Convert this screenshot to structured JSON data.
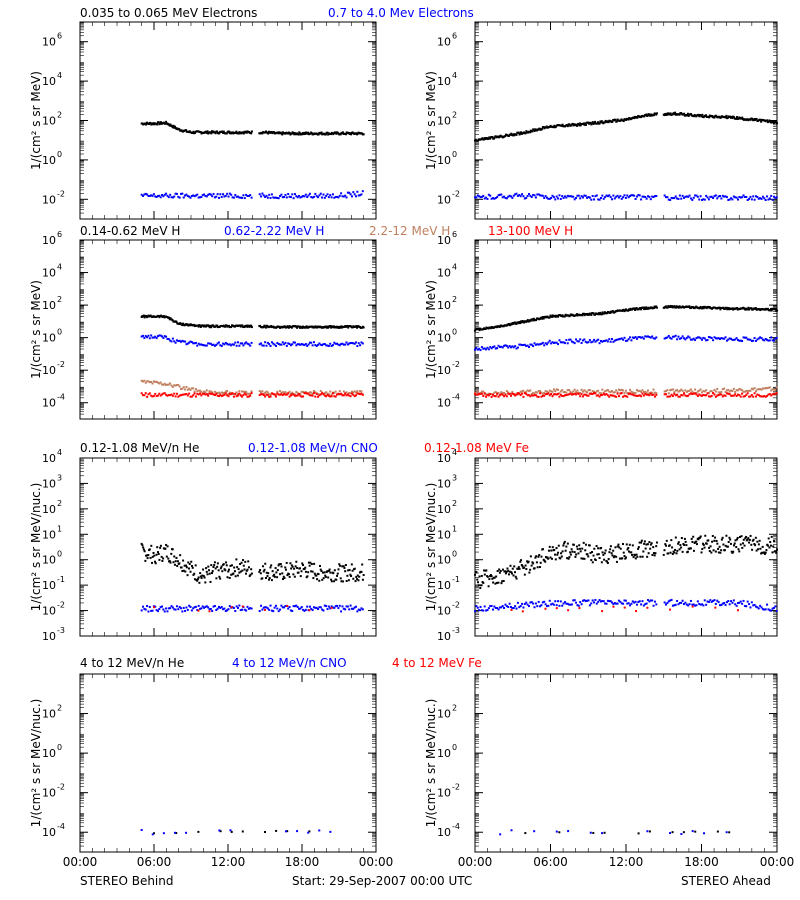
{
  "footer": {
    "left": "STEREO Behind",
    "center": "Start: 29-Sep-2007 00:00 UTC",
    "right": "STEREO Ahead"
  },
  "x_ticks": [
    "00:00",
    "06:00",
    "12:00",
    "18:00",
    "00:00"
  ],
  "colors": {
    "black": "#000000",
    "blue": "#0000ff",
    "tan": "#c08060",
    "red": "#ff0000"
  },
  "rows": [
    {
      "ylabel": "1/(cm² s sr MeV)",
      "legend": [
        {
          "text": "0.035 to 0.065 MeV Electrons",
          "color": "black"
        },
        {
          "text": "0.7 to 4.0 Mev Electrons",
          "color": "blue"
        }
      ]
    },
    {
      "ylabel": "1/(cm² s sr MeV)",
      "legend": [
        {
          "text": "0.14-0.62 MeV H",
          "color": "black"
        },
        {
          "text": "0.62-2.22 MeV H",
          "color": "blue"
        },
        {
          "text": "2.2-12 MeV H",
          "color": "tan"
        },
        {
          "text": "13-100 MeV H",
          "color": "red"
        }
      ]
    },
    {
      "ylabel": "1/(cm² s sr MeV/nuc.)",
      "legend": [
        {
          "text": "0.12-1.08 MeV/n He",
          "color": "black"
        },
        {
          "text": "0.12-1.08 MeV/n CNO",
          "color": "blue"
        },
        {
          "text": "0.12-1.08 MeV Fe",
          "color": "red"
        }
      ]
    },
    {
      "ylabel": "1/(cm² s sr MeV/nuc.)",
      "legend": [
        {
          "text": "4 to 12 MeV/n He",
          "color": "black"
        },
        {
          "text": "4 to 12 MeV/n CNO",
          "color": "blue"
        },
        {
          "text": "4 to 12 MeV Fe",
          "color": "red"
        }
      ]
    }
  ],
  "chart_data": [
    {
      "type": "scatter",
      "panel": "electrons-behind",
      "scale": "log",
      "ylim_exp": [
        -3,
        7
      ],
      "y_ticks_exp": [
        -2,
        0,
        2,
        4,
        6
      ],
      "xlim": [
        0,
        24
      ],
      "series": [
        {
          "name": "0.035 to 0.065 MeV Electrons",
          "color": "black",
          "x": [
            5,
            6,
            7,
            8,
            9,
            10,
            11,
            12,
            13,
            14,
            15,
            16,
            17,
            18,
            19,
            20,
            21,
            22,
            23
          ],
          "y": [
            70,
            70,
            75,
            35,
            25,
            25,
            25,
            25,
            25,
            25,
            25,
            22,
            22,
            22,
            22,
            22,
            22,
            22,
            22
          ],
          "gap": [
            14,
            14.5
          ]
        },
        {
          "name": "0.7 to 4.0 Mev Electrons",
          "color": "blue",
          "x": [
            5,
            7,
            9,
            11,
            13,
            15,
            17,
            19,
            21,
            23
          ],
          "y": [
            0.015,
            0.015,
            0.015,
            0.015,
            0.015,
            0.015,
            0.015,
            0.015,
            0.015,
            0.02
          ],
          "gap": [
            14,
            14.5
          ]
        }
      ]
    },
    {
      "type": "scatter",
      "panel": "electrons-ahead",
      "scale": "log",
      "ylim_exp": [
        -3,
        7
      ],
      "y_ticks_exp": [
        -2,
        0,
        2,
        4,
        6
      ],
      "xlim": [
        0,
        24
      ],
      "series": [
        {
          "name": "0.035 to 0.065 MeV Electrons",
          "color": "black",
          "x": [
            0,
            2,
            4,
            6,
            8,
            10,
            12,
            14,
            16,
            18,
            20,
            22,
            24
          ],
          "y": [
            10,
            15,
            25,
            50,
            60,
            80,
            110,
            200,
            220,
            170,
            150,
            110,
            80
          ],
          "gap": [
            14.5,
            15
          ]
        },
        {
          "name": "0.7 to 4.0 Mev Electrons",
          "color": "blue",
          "x": [
            0,
            3,
            6,
            9,
            12,
            15,
            18,
            21,
            24
          ],
          "y": [
            0.012,
            0.015,
            0.013,
            0.012,
            0.013,
            0.012,
            0.012,
            0.012,
            0.012
          ],
          "gap": [
            14.5,
            15
          ]
        }
      ]
    },
    {
      "type": "scatter",
      "panel": "protons-behind",
      "scale": "log",
      "ylim_exp": [
        -5,
        6
      ],
      "y_ticks_exp": [
        -4,
        -2,
        0,
        2,
        4,
        6
      ],
      "xlim": [
        0,
        24
      ],
      "series": [
        {
          "name": "0.14-0.62 MeV H",
          "color": "black",
          "x": [
            5,
            7,
            8,
            10,
            12,
            14,
            16,
            18,
            20,
            23
          ],
          "y": [
            20,
            20,
            7,
            5,
            5,
            5,
            4.5,
            4.5,
            4.5,
            4.5
          ],
          "gap": [
            14,
            14.5
          ]
        },
        {
          "name": "0.62-2.22 MeV H",
          "color": "blue",
          "x": [
            5,
            7,
            8,
            10,
            12,
            14,
            16,
            18,
            20,
            23
          ],
          "y": [
            1.2,
            1.0,
            0.5,
            0.4,
            0.4,
            0.4,
            0.4,
            0.4,
            0.4,
            0.4
          ],
          "gap": [
            14,
            14.5
          ]
        },
        {
          "name": "2.2-12 MeV H",
          "color": "tan",
          "x": [
            5,
            7,
            9,
            11,
            13,
            15,
            17,
            19,
            21,
            23
          ],
          "y": [
            0.002,
            0.0015,
            0.0006,
            0.0004,
            0.0004,
            0.0004,
            0.0004,
            0.0004,
            0.0004,
            0.0004
          ],
          "gap": [
            14,
            14.5
          ]
        },
        {
          "name": "13-100 MeV H",
          "color": "red",
          "x": [
            5,
            7,
            9,
            11,
            13,
            15,
            17,
            19,
            21,
            23
          ],
          "y": [
            0.0003,
            0.0003,
            0.0003,
            0.0003,
            0.0003,
            0.0003,
            0.0003,
            0.0003,
            0.0003,
            0.0003
          ],
          "gap": [
            14,
            14.5
          ]
        }
      ]
    },
    {
      "type": "scatter",
      "panel": "protons-ahead",
      "scale": "log",
      "ylim_exp": [
        -5,
        6
      ],
      "y_ticks_exp": [
        -4,
        -2,
        0,
        2,
        4,
        6
      ],
      "xlim": [
        0,
        24
      ],
      "series": [
        {
          "name": "0.14-0.62 MeV H",
          "color": "black",
          "x": [
            0,
            2,
            4,
            6,
            8,
            10,
            12,
            14,
            16,
            18,
            20,
            22,
            24
          ],
          "y": [
            3,
            5,
            10,
            20,
            25,
            30,
            50,
            70,
            80,
            70,
            60,
            60,
            50
          ],
          "gap": [
            14.5,
            15
          ]
        },
        {
          "name": "0.62-2.22 MeV H",
          "color": "blue",
          "x": [
            0,
            2,
            4,
            6,
            8,
            10,
            12,
            14,
            16,
            18,
            20,
            22,
            24
          ],
          "y": [
            0.2,
            0.25,
            0.3,
            0.5,
            0.6,
            0.6,
            0.8,
            1.0,
            1.0,
            0.9,
            0.8,
            0.8,
            0.8
          ],
          "gap": [
            14.5,
            15
          ]
        },
        {
          "name": "2.2-12 MeV H",
          "color": "tan",
          "x": [
            0,
            3,
            6,
            9,
            12,
            15,
            18,
            21,
            24
          ],
          "y": [
            0.0004,
            0.0004,
            0.0005,
            0.0005,
            0.0005,
            0.0005,
            0.0005,
            0.0006,
            0.0007
          ],
          "gap": [
            14.5,
            15
          ]
        },
        {
          "name": "13-100 MeV H",
          "color": "red",
          "x": [
            0,
            3,
            6,
            9,
            12,
            15,
            18,
            21,
            24
          ],
          "y": [
            0.0003,
            0.0003,
            0.0003,
            0.0003,
            0.0003,
            0.0003,
            0.0003,
            0.0003,
            0.0003
          ],
          "gap": [
            14.5,
            15
          ]
        }
      ]
    },
    {
      "type": "scatter",
      "panel": "midenergy-behind",
      "scale": "log",
      "ylim_exp": [
        -3,
        4
      ],
      "y_ticks_exp": [
        -3,
        -2,
        -1,
        0,
        1,
        2,
        3,
        4
      ],
      "xlim": [
        0,
        24
      ],
      "series": [
        {
          "name": "0.12-1.08 MeV/n He",
          "color": "black",
          "x": [
            5,
            6,
            7,
            8,
            9,
            10,
            11,
            12,
            13,
            14,
            16,
            18,
            20,
            22,
            23
          ],
          "y": [
            2,
            1.5,
            2,
            1,
            0.4,
            0.2,
            0.4,
            0.4,
            0.5,
            0.4,
            0.3,
            0.4,
            0.3,
            0.3,
            0.3
          ],
          "gap": [
            14,
            14.5
          ]
        },
        {
          "name": "0.12-1.08 MeV/n CNO",
          "color": "blue",
          "x": [
            5,
            7,
            9,
            11,
            13,
            15,
            17,
            19,
            21,
            23
          ],
          "y": [
            0.012,
            0.012,
            0.012,
            0.012,
            0.012,
            0.012,
            0.012,
            0.012,
            0.012,
            0.012
          ],
          "gap": [
            14,
            14.5
          ]
        },
        {
          "name": "0.12-1.08 MeV Fe",
          "color": "red",
          "x": [
            6,
            10,
            14,
            17,
            21
          ],
          "y": [
            0.012,
            0.012,
            0.012,
            0.012,
            0.012
          ],
          "gap": [
            14,
            14.5
          ]
        }
      ]
    },
    {
      "type": "scatter",
      "panel": "midenergy-ahead",
      "scale": "log",
      "ylim_exp": [
        -3,
        4
      ],
      "y_ticks_exp": [
        -3,
        -2,
        -1,
        0,
        1,
        2,
        3,
        4
      ],
      "xlim": [
        0,
        24
      ],
      "series": [
        {
          "name": "0.12-1.08 MeV/n He",
          "color": "black",
          "x": [
            0,
            2,
            4,
            6,
            8,
            10,
            12,
            14,
            16,
            18,
            20,
            22,
            24
          ],
          "y": [
            0.15,
            0.25,
            0.5,
            2,
            2.5,
            1.5,
            2,
            3,
            3.5,
            4,
            4,
            4,
            3.5
          ],
          "gap": [
            14.5,
            15
          ]
        },
        {
          "name": "0.12-1.08 MeV/n CNO",
          "color": "blue",
          "x": [
            0,
            3,
            6,
            9,
            12,
            15,
            18,
            21,
            24
          ],
          "y": [
            0.012,
            0.015,
            0.02,
            0.02,
            0.02,
            0.02,
            0.02,
            0.02,
            0.012
          ],
          "gap": [
            14.5,
            15
          ]
        },
        {
          "name": "0.12-1.08 MeV Fe",
          "color": "red",
          "x": [
            2,
            6,
            10,
            14,
            18,
            22
          ],
          "y": [
            0.012,
            0.012,
            0.012,
            0.012,
            0.012,
            0.012
          ],
          "gap": [
            14.5,
            15
          ]
        }
      ]
    },
    {
      "type": "scatter",
      "panel": "highenergy-behind",
      "scale": "log",
      "ylim_exp": [
        -5,
        4
      ],
      "y_ticks_exp": [
        -4,
        -2,
        0,
        2
      ],
      "xlim": [
        0,
        24
      ],
      "series": [
        {
          "name": "4 to 12 MeV/n He",
          "color": "black",
          "x": [
            6,
            11,
            15,
            19,
            21
          ],
          "y": [
            0.0001,
            0.0001,
            0.0001,
            0.00012,
            0.0001
          ],
          "gap": [
            14,
            14.5
          ]
        },
        {
          "name": "4 to 12 MeV/n CNO",
          "color": "blue",
          "x": [
            5,
            7,
            9,
            11,
            13,
            15,
            17,
            19,
            21
          ],
          "y": [
            0.0001,
            0.0001,
            0.0001,
            0.0001,
            0.0001,
            0.0001,
            0.0001,
            0.0001,
            0.0001
          ],
          "gap": [
            14,
            14.5
          ]
        }
      ]
    },
    {
      "type": "scatter",
      "panel": "highenergy-ahead",
      "scale": "log",
      "ylim_exp": [
        -5,
        4
      ],
      "y_ticks_exp": [
        -4,
        -2,
        0,
        2
      ],
      "xlim": [
        0,
        24
      ],
      "series": [
        {
          "name": "4 to 12 MeV/n He",
          "color": "black",
          "x": [
            4,
            9,
            13,
            18,
            21
          ],
          "y": [
            0.0001,
            0.0001,
            0.0001,
            0.00012,
            0.0001
          ],
          "gap": [
            14.5,
            15
          ]
        },
        {
          "name": "4 to 12 MeV/n CNO",
          "color": "blue",
          "x": [
            2,
            5,
            8,
            11,
            14,
            17,
            20
          ],
          "y": [
            0.0001,
            0.0001,
            0.0001,
            0.0001,
            0.0001,
            0.0001,
            0.0001
          ],
          "gap": [
            14.5,
            15
          ]
        }
      ]
    }
  ]
}
